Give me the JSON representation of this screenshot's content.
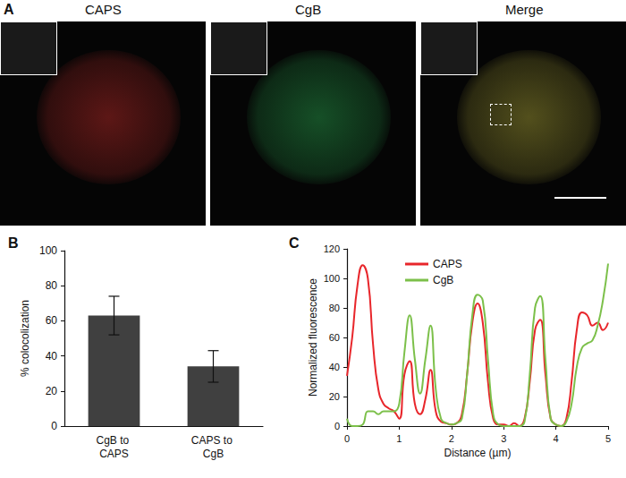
{
  "panel_a": {
    "label": "A",
    "images": [
      {
        "title": "CAPS",
        "color": "#e0322f"
      },
      {
        "title": "CgB",
        "color": "#2fbf5a"
      },
      {
        "title": "Merge",
        "color": "#c8c040"
      }
    ]
  },
  "chart_data": [
    {
      "type": "bar",
      "title": "B",
      "categories": [
        "CgB to CAPS",
        "CAPS to CgB"
      ],
      "values": [
        63,
        34
      ],
      "errors": [
        11,
        9
      ],
      "color": "#404040",
      "y_label": "% colocolization",
      "ylim": [
        0,
        100
      ],
      "yticks": [
        0,
        20,
        40,
        60,
        80,
        100
      ],
      "grid": false
    },
    {
      "type": "line",
      "title": "C",
      "x_label": "Distance (µm)",
      "y_label": "Normalized fluorescence",
      "x": [
        0,
        0.1,
        0.2,
        0.3,
        0.4,
        0.5,
        0.6,
        0.7,
        0.8,
        0.9,
        1.0,
        1.1,
        1.2,
        1.3,
        1.4,
        1.5,
        1.6,
        1.7,
        1.8,
        1.9,
        2.0,
        2.1,
        2.2,
        2.3,
        2.4,
        2.5,
        2.6,
        2.7,
        2.8,
        2.9,
        3.0,
        3.1,
        3.2,
        3.3,
        3.4,
        3.5,
        3.6,
        3.7,
        3.8,
        3.9,
        4.0,
        4.1,
        4.2,
        4.3,
        4.4,
        4.5,
        4.6,
        4.7,
        4.8,
        4.9,
        5.0
      ],
      "series": [
        {
          "name": "CAPS",
          "color": "#e8262b",
          "values": [
            34,
            60,
            95,
            109,
            100,
            55,
            25,
            15,
            12,
            10,
            5,
            35,
            44,
            15,
            8,
            18,
            38,
            10,
            3,
            2,
            1,
            2,
            8,
            35,
            70,
            83,
            70,
            30,
            5,
            1,
            1,
            0,
            2,
            0,
            5,
            30,
            65,
            72,
            35,
            5,
            1,
            0,
            5,
            30,
            65,
            77,
            75,
            68,
            70,
            65,
            70
          ]
        },
        {
          "name": "CgB",
          "color": "#7cc04a",
          "values": [
            5,
            0,
            0,
            1,
            10,
            10,
            8,
            10,
            10,
            10,
            15,
            50,
            75,
            45,
            22,
            45,
            68,
            25,
            5,
            2,
            1,
            2,
            5,
            35,
            75,
            89,
            85,
            45,
            8,
            1,
            0,
            0,
            0,
            0,
            3,
            35,
            80,
            88,
            45,
            5,
            1,
            0,
            3,
            15,
            40,
            53,
            56,
            58,
            68,
            85,
            110
          ]
        }
      ],
      "xlim": [
        0,
        5
      ],
      "xticks": [
        0,
        1,
        2,
        3,
        4,
        5
      ],
      "ylim": [
        0,
        120
      ],
      "yticks": [
        0,
        20,
        40,
        60,
        80,
        100,
        120
      ],
      "legend": "top-left",
      "grid": false
    }
  ]
}
